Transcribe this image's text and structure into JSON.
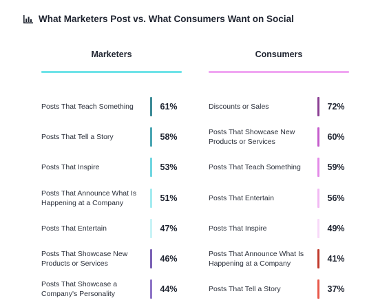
{
  "title": "What Marketers Post vs. What Consumers Want on Social",
  "columns": {
    "left": {
      "heading": "Marketers",
      "underline_color": "#6fe3e8"
    },
    "right": {
      "heading": "Consumers",
      "underline_color": "#f0a6f2"
    }
  },
  "chart_data": [
    {
      "type": "table",
      "title": "Marketers",
      "categories": [
        "Posts That Teach Something",
        "Posts That Tell a Story",
        "Posts That Inspire",
        "Posts That Announce What Is Happening at a Company",
        "Posts That Entertain",
        "Posts That Showcase New Products or Services",
        "Posts That Showcase a Company's Personality"
      ],
      "values": [
        61,
        58,
        53,
        51,
        47,
        46,
        44
      ],
      "value_labels": [
        "61%",
        "58%",
        "53%",
        "51%",
        "47%",
        "46%",
        "44%"
      ],
      "bar_colors": [
        "#3c8a96",
        "#4aa5b2",
        "#6fd6e0",
        "#a3ebf0",
        "#c8f3f6",
        "#7b62b5",
        "#8e74c6"
      ]
    },
    {
      "type": "table",
      "title": "Consumers",
      "categories": [
        "Discounts or Sales",
        "Posts That Showcase New Products or Services",
        "Posts That Teach Something",
        "Posts That Entertain",
        "Posts That Inspire",
        "Posts That Announce What Is Happening at a Company",
        "Posts That Tell a Story"
      ],
      "values": [
        72,
        60,
        59,
        56,
        49,
        41,
        37
      ],
      "value_labels": [
        "72%",
        "60%",
        "59%",
        "56%",
        "49%",
        "41%",
        "37%"
      ],
      "bar_colors": [
        "#8a3e93",
        "#c45ccc",
        "#e38ae8",
        "#f2b9f4",
        "#f8d9f9",
        "#c0392b",
        "#e8584a"
      ]
    }
  ]
}
